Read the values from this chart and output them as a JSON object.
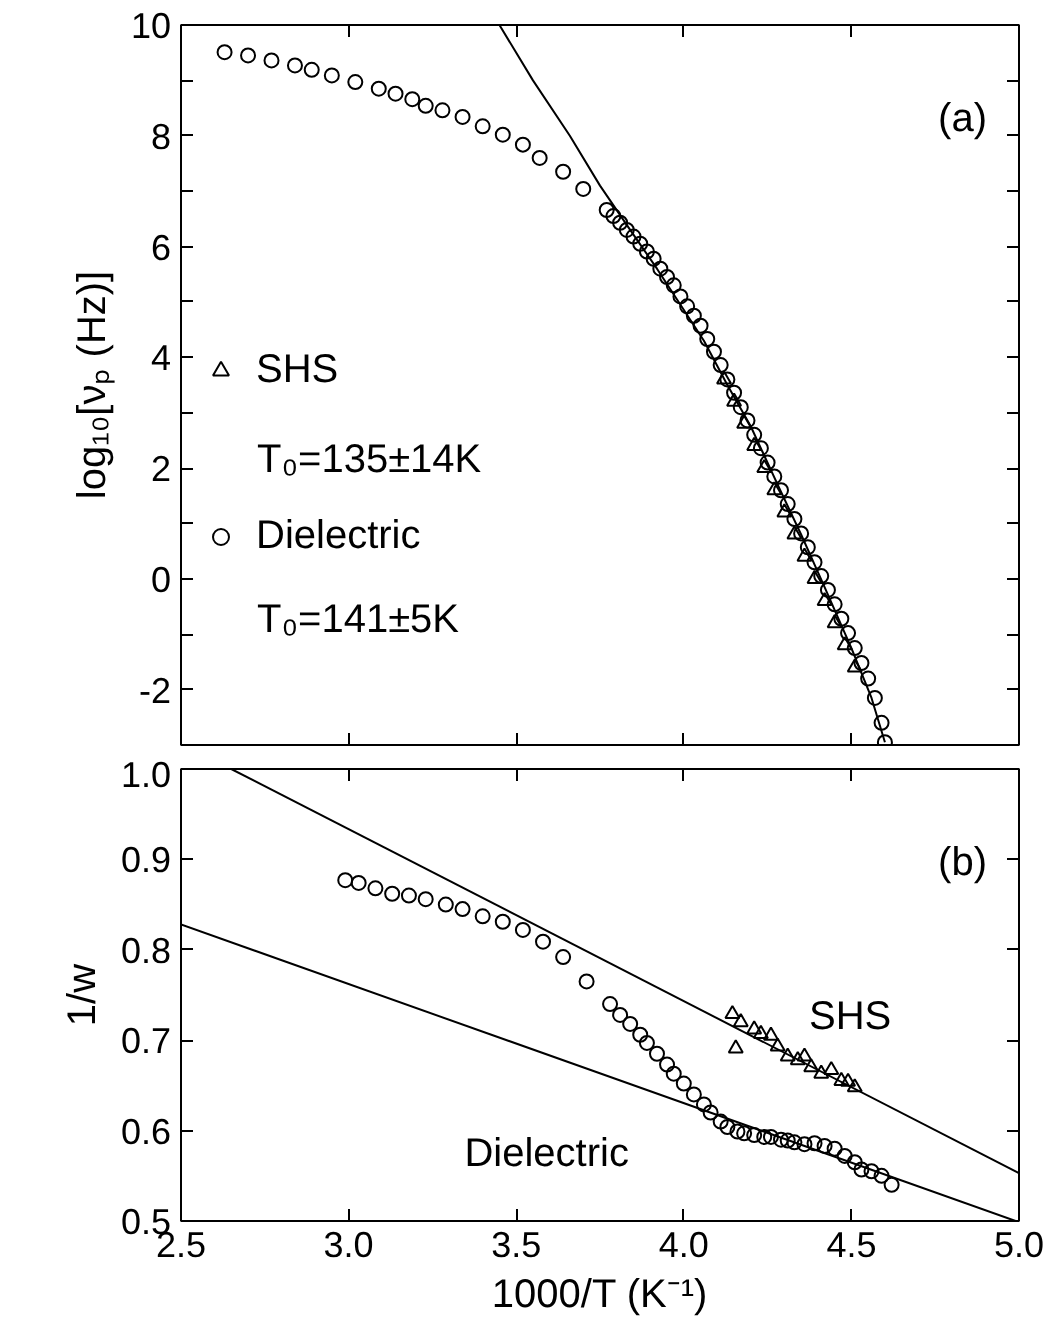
{
  "chart_data": [
    {
      "type": "scatter",
      "ylabel": "log₁₀[νₚ (Hz)]",
      "xlim": [
        2.5,
        5.0
      ],
      "ylim": [
        -3,
        10
      ],
      "xticks": [
        {
          "value": 2.5,
          "label": null
        },
        {
          "value": 3,
          "label": null
        },
        {
          "value": 3.5,
          "label": null
        },
        {
          "value": 4,
          "label": null
        },
        {
          "value": 4.5,
          "label": null
        },
        {
          "value": 5,
          "label": null
        }
      ],
      "yticks": [
        -2,
        {
          "value": -1,
          "label": null
        },
        0,
        {
          "value": 1,
          "label": null
        },
        2,
        {
          "value": 3,
          "label": null
        },
        4,
        {
          "value": 5,
          "label": null
        },
        6,
        {
          "value": 7,
          "label": null
        },
        8,
        {
          "value": 9,
          "label": null
        },
        10
      ],
      "tick_labels": "y",
      "grid": false,
      "legend": "left",
      "annotations": [
        "(a)",
        "T₀=135±14K",
        "T₀=141±5K"
      ],
      "series": [
        {
          "name": "SHS",
          "marker": "triangle",
          "color": "#000000",
          "x": [
            4.12,
            4.15,
            4.18,
            4.21,
            4.24,
            4.27,
            4.3,
            4.33,
            4.36,
            4.39,
            4.42,
            4.45,
            4.48,
            4.51
          ],
          "values": [
            3.6,
            3.2,
            2.8,
            2.4,
            2.0,
            1.6,
            1.2,
            0.8,
            0.4,
            0.0,
            -0.4,
            -0.8,
            -1.2,
            -1.6
          ]
        },
        {
          "name": "Dielectric",
          "marker": "circle",
          "color": "#000000",
          "x": [
            2.63,
            2.7,
            2.77,
            2.84,
            2.89,
            2.95,
            3.02,
            3.09,
            3.14,
            3.19,
            3.23,
            3.28,
            3.34,
            3.4,
            3.46,
            3.52,
            3.57,
            3.64,
            3.7,
            3.77,
            3.79,
            3.81,
            3.83,
            3.85,
            3.87,
            3.89,
            3.91,
            3.93,
            3.95,
            3.97,
            3.99,
            4.01,
            4.03,
            4.05,
            4.07,
            4.09,
            4.11,
            4.13,
            4.15,
            4.17,
            4.19,
            4.21,
            4.23,
            4.25,
            4.27,
            4.29,
            4.31,
            4.33,
            4.35,
            4.37,
            4.39,
            4.41,
            4.43,
            4.45,
            4.47,
            4.49,
            4.51,
            4.53,
            4.55,
            4.57,
            4.59,
            4.6
          ],
          "values": [
            9.51,
            9.45,
            9.36,
            9.27,
            9.19,
            9.09,
            8.97,
            8.85,
            8.76,
            8.66,
            8.54,
            8.46,
            8.34,
            8.17,
            8.02,
            7.84,
            7.6,
            7.35,
            7.04,
            6.66,
            6.55,
            6.43,
            6.3,
            6.18,
            6.05,
            5.91,
            5.78,
            5.6,
            5.45,
            5.3,
            5.1,
            4.92,
            4.75,
            4.57,
            4.33,
            4.1,
            3.86,
            3.6,
            3.36,
            3.1,
            2.86,
            2.6,
            2.36,
            2.1,
            1.85,
            1.6,
            1.35,
            1.08,
            0.82,
            0.57,
            0.3,
            0.05,
            -0.2,
            -0.46,
            -0.72,
            -0.98,
            -1.25,
            -1.52,
            -1.8,
            -2.15,
            -2.6,
            -2.95
          ]
        },
        {
          "type": "line",
          "line_style": "solid",
          "color": "#000000",
          "x": [
            3.45,
            3.55,
            3.66,
            3.75,
            3.84,
            3.92,
            3.99,
            4.06,
            4.13,
            4.2,
            4.28,
            4.35,
            4.42,
            4.5,
            4.56,
            4.6
          ],
          "values": [
            10.0,
            9.0,
            8.0,
            7.1,
            6.3,
            5.6,
            4.95,
            4.3,
            3.5,
            2.75,
            1.7,
            0.8,
            -0.15,
            -1.25,
            -2.15,
            -2.95
          ]
        }
      ]
    },
    {
      "type": "scatter",
      "xlabel": "1000/T (K⁻¹)",
      "ylabel": "1/w",
      "xlim": [
        2.5,
        5.0
      ],
      "ylim": [
        0.5,
        1.0
      ],
      "xticks": [
        2.5,
        {
          "value": 3,
          "label": "3.0"
        },
        3.5,
        {
          "value": 4,
          "label": "4.0"
        },
        4.5,
        {
          "value": 5,
          "label": "5.0"
        }
      ],
      "yticks": [
        0.5,
        0.6,
        0.7,
        0.8,
        0.9,
        {
          "value": 1,
          "label": "1.0"
        }
      ],
      "grid": false,
      "annotations": [
        "(b)",
        "SHS",
        "Dielectric"
      ],
      "series": [
        {
          "marker": "triangle",
          "color": "#000000",
          "x": [
            4.145,
            4.155,
            4.17,
            4.21,
            4.23,
            4.26,
            4.28,
            4.31,
            4.34,
            4.36,
            4.38,
            4.41,
            4.44,
            4.47,
            4.49,
            4.51
          ],
          "values": [
            0.729,
            0.691,
            0.72,
            0.712,
            0.707,
            0.705,
            0.693,
            0.682,
            0.678,
            0.682,
            0.67,
            0.663,
            0.667,
            0.655,
            0.654,
            0.648
          ]
        },
        {
          "marker": "circle",
          "color": "#000000",
          "x": [
            2.99,
            3.03,
            3.08,
            3.13,
            3.18,
            3.23,
            3.29,
            3.34,
            3.4,
            3.46,
            3.52,
            3.58,
            3.64,
            3.71,
            3.78,
            3.81,
            3.84,
            3.87,
            3.89,
            3.92,
            3.95,
            3.97,
            4.0,
            4.03,
            4.06,
            4.08,
            4.11,
            4.13,
            4.16,
            4.18,
            4.21,
            4.24,
            4.26,
            4.29,
            4.31,
            4.33,
            4.36,
            4.39,
            4.42,
            4.45,
            4.48,
            4.51,
            4.53,
            4.56,
            4.59,
            4.62
          ],
          "values": [
            0.877,
            0.874,
            0.868,
            0.862,
            0.86,
            0.856,
            0.85,
            0.845,
            0.837,
            0.831,
            0.822,
            0.809,
            0.792,
            0.765,
            0.74,
            0.728,
            0.718,
            0.706,
            0.697,
            0.685,
            0.673,
            0.663,
            0.652,
            0.64,
            0.629,
            0.62,
            0.61,
            0.604,
            0.599,
            0.597,
            0.595,
            0.593,
            0.593,
            0.59,
            0.589,
            0.587,
            0.585,
            0.586,
            0.583,
            0.58,
            0.572,
            0.565,
            0.557,
            0.555,
            0.55,
            0.54
          ]
        },
        {
          "type": "line",
          "line_style": "solid",
          "color": "#000000",
          "x": [
            2.65,
            5.0
          ],
          "values": [
            1.0,
            0.553
          ]
        },
        {
          "type": "line",
          "line_style": "solid",
          "color": "#000000",
          "x": [
            2.5,
            4.99
          ],
          "values": [
            0.828,
            0.5
          ]
        }
      ]
    }
  ]
}
